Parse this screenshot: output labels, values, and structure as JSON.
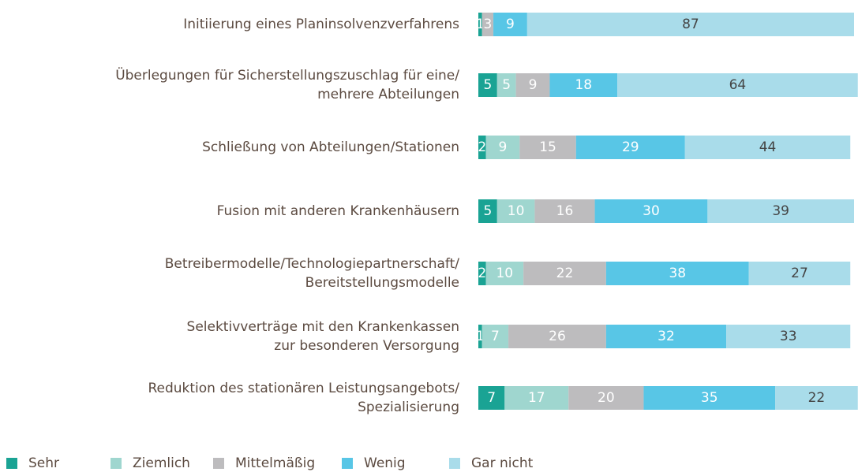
{
  "chart_data": {
    "type": "stacked_barh",
    "categories": [
      "Initiierung eines Planinsolvenzverfahrens",
      "Überlegungen für Sicherstellungszuschlag für eine/\nmehrere Abteilungen",
      "Schließung von Abteilungen/Stationen",
      "Fusion mit anderen Krankenhäusern",
      "Betreibermodelle/Technologiepartnerschaft/\nBereitstellungsmodelle",
      "Selektivverträge mit den Krankenkassen\nzur besonderen Versorgung",
      "Reduktion des stationären Leistungsangebots/\nSpezialisierung"
    ],
    "series": [
      {
        "name": "Sehr",
        "color": "#1aa394",
        "values": [
          1,
          5,
          2,
          5,
          2,
          1,
          7
        ]
      },
      {
        "name": "Ziemlich",
        "color": "#9fd6cf",
        "values": [
          0,
          5,
          9,
          10,
          10,
          7,
          17
        ]
      },
      {
        "name": "Mittelmäßig",
        "color": "#bdbcbe",
        "values": [
          3,
          9,
          15,
          16,
          22,
          26,
          20
        ]
      },
      {
        "name": "Wenig",
        "color": "#58c6e6",
        "values": [
          9,
          18,
          29,
          30,
          38,
          32,
          35
        ]
      },
      {
        "name": "Gar nicht",
        "color": "#a9dcea",
        "values": [
          87,
          64,
          44,
          39,
          27,
          33,
          22
        ]
      }
    ],
    "legend": "bottom"
  }
}
